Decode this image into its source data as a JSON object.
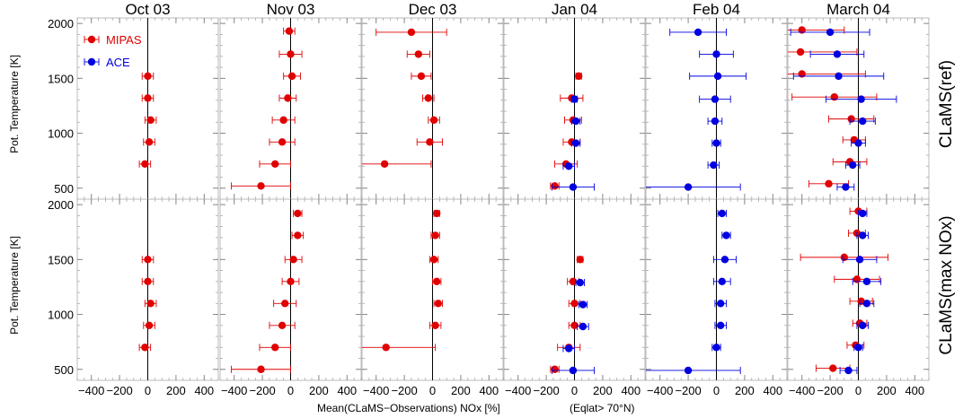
{
  "chart_data": {
    "type": "scatter",
    "title": "",
    "xlabel": "Mean(CLaMS−Observations) NOx [%]",
    "xlabel_note": "(Eqlat> 70°N)",
    "ylabel": "Pot. Temperature [K]",
    "columns": [
      "Oct 03",
      "Nov 03",
      "Dec 03",
      "Jan 04",
      "Feb 04",
      "March 04"
    ],
    "rows": [
      "CLaMS(ref)",
      "CLaMS(max NOx)"
    ],
    "xlim": [
      -500,
      500
    ],
    "ylim": [
      400,
      2050
    ],
    "xticks": [
      -400,
      -200,
      0,
      200,
      400
    ],
    "xtick_labels": [
      "−400",
      "−200",
      "0",
      "200",
      "400"
    ],
    "yticks": [
      500,
      1000,
      1500,
      2000
    ],
    "ytick_labels": [
      "500",
      "1000",
      "1500",
      "2000"
    ],
    "legend": {
      "position": "top-left",
      "entries": [
        {
          "name": "MIPAS",
          "color": "#e00000"
        },
        {
          "name": "ACE",
          "color": "#0000e0"
        }
      ]
    },
    "colors": {
      "MIPAS": "#e00000",
      "ACE": "#0000e0"
    },
    "panels": [
      {
        "row": 0,
        "col": 0,
        "series": [
          {
            "name": "MIPAS",
            "points": [
              {
                "x": 0,
                "y": 1520,
                "xerr": 40
              },
              {
                "x": 0,
                "y": 1320,
                "xerr": 40
              },
              {
                "x": 20,
                "y": 1120,
                "xerr": 40
              },
              {
                "x": 10,
                "y": 920,
                "xerr": 40
              },
              {
                "x": -20,
                "y": 720,
                "xerr": 40
              }
            ]
          }
        ]
      },
      {
        "row": 0,
        "col": 1,
        "series": [
          {
            "name": "MIPAS",
            "points": [
              {
                "x": -10,
                "y": 1930,
                "xerr": 40
              },
              {
                "x": 0,
                "y": 1720,
                "xerr": 80
              },
              {
                "x": 10,
                "y": 1520,
                "xerr": 60
              },
              {
                "x": -20,
                "y": 1320,
                "xerr": 60
              },
              {
                "x": -50,
                "y": 1120,
                "xerr": 80
              },
              {
                "x": -60,
                "y": 920,
                "xerr": 90
              },
              {
                "x": -110,
                "y": 720,
                "xerr": 110
              },
              {
                "x": -210,
                "y": 520,
                "xerr": 210
              }
            ]
          }
        ]
      },
      {
        "row": 0,
        "col": 2,
        "series": [
          {
            "name": "MIPAS",
            "points": [
              {
                "x": -150,
                "y": 1920,
                "xerr": 250
              },
              {
                "x": -100,
                "y": 1720,
                "xerr": 80
              },
              {
                "x": -80,
                "y": 1520,
                "xerr": 70
              },
              {
                "x": -30,
                "y": 1320,
                "xerr": 40
              },
              {
                "x": 10,
                "y": 1120,
                "xerr": 40
              },
              {
                "x": -20,
                "y": 920,
                "xerr": 90
              },
              {
                "x": -340,
                "y": 720,
                "xerr": 330
              }
            ]
          }
        ]
      },
      {
        "row": 0,
        "col": 3,
        "series": [
          {
            "name": "MIPAS",
            "points": [
              {
                "x": 30,
                "y": 1520,
                "xerr": 20
              },
              {
                "x": -20,
                "y": 1320,
                "xerr": 80
              },
              {
                "x": -10,
                "y": 1120,
                "xerr": 60
              },
              {
                "x": -20,
                "y": 920,
                "xerr": 60
              },
              {
                "x": -60,
                "y": 720,
                "xerr": 80
              },
              {
                "x": -140,
                "y": 520,
                "xerr": 30
              }
            ]
          },
          {
            "name": "ACE",
            "points": [
              {
                "x": 0,
                "y": 1310,
                "xerr": 20
              },
              {
                "x": 10,
                "y": 1110,
                "xerr": 30
              },
              {
                "x": 10,
                "y": 910,
                "xerr": 30
              },
              {
                "x": -40,
                "y": 700,
                "xerr": 40
              },
              {
                "x": -10,
                "y": 510,
                "xerr": 150
              }
            ]
          }
        ]
      },
      {
        "row": 0,
        "col": 4,
        "series": [
          {
            "name": "ACE",
            "points": [
              {
                "x": -130,
                "y": 1920,
                "xerr": 200
              },
              {
                "x": 0,
                "y": 1720,
                "xerr": 120
              },
              {
                "x": 10,
                "y": 1520,
                "xerr": 200
              },
              {
                "x": -10,
                "y": 1310,
                "xerr": 110
              },
              {
                "x": -10,
                "y": 1110,
                "xerr": 50
              },
              {
                "x": 0,
                "y": 910,
                "xerr": 30
              },
              {
                "x": -20,
                "y": 710,
                "xerr": 40
              },
              {
                "x": -200,
                "y": 510,
                "xerr": 370
              }
            ]
          }
        ]
      },
      {
        "row": 0,
        "col": 5,
        "series": [
          {
            "name": "MIPAS",
            "points": [
              {
                "x": -400,
                "y": 1940,
                "xerr": 300
              },
              {
                "x": -410,
                "y": 1740,
                "xerr": 400
              },
              {
                "x": -400,
                "y": 1540,
                "xerr": 450
              },
              {
                "x": -170,
                "y": 1330,
                "xerr": 300
              },
              {
                "x": -50,
                "y": 1130,
                "xerr": 160
              },
              {
                "x": -30,
                "y": 940,
                "xerr": 80
              },
              {
                "x": -60,
                "y": 740,
                "xerr": 120
              },
              {
                "x": -210,
                "y": 540,
                "xerr": 140
              }
            ]
          },
          {
            "name": "ACE",
            "points": [
              {
                "x": -200,
                "y": 1920,
                "xerr": 280
              },
              {
                "x": -150,
                "y": 1720,
                "xerr": 190
              },
              {
                "x": -140,
                "y": 1520,
                "xerr": 320
              },
              {
                "x": 20,
                "y": 1310,
                "xerr": 250
              },
              {
                "x": 30,
                "y": 1110,
                "xerr": 90
              },
              {
                "x": 0,
                "y": 910,
                "xerr": 50
              },
              {
                "x": -40,
                "y": 710,
                "xerr": 50
              },
              {
                "x": -90,
                "y": 510,
                "xerr": 60
              }
            ]
          }
        ]
      },
      {
        "row": 1,
        "col": 0,
        "series": [
          {
            "name": "MIPAS",
            "points": [
              {
                "x": 0,
                "y": 1500,
                "xerr": 40
              },
              {
                "x": 0,
                "y": 1300,
                "xerr": 40
              },
              {
                "x": 20,
                "y": 1100,
                "xerr": 40
              },
              {
                "x": 10,
                "y": 900,
                "xerr": 40
              },
              {
                "x": -20,
                "y": 700,
                "xerr": 40
              }
            ]
          }
        ]
      },
      {
        "row": 1,
        "col": 1,
        "series": [
          {
            "name": "MIPAS",
            "points": [
              {
                "x": 50,
                "y": 1920,
                "xerr": 30
              },
              {
                "x": 50,
                "y": 1720,
                "xerr": 40
              },
              {
                "x": 20,
                "y": 1500,
                "xerr": 60
              },
              {
                "x": 0,
                "y": 1300,
                "xerr": 60
              },
              {
                "x": -40,
                "y": 1100,
                "xerr": 80
              },
              {
                "x": -60,
                "y": 900,
                "xerr": 90
              },
              {
                "x": -110,
                "y": 700,
                "xerr": 110
              },
              {
                "x": -210,
                "y": 500,
                "xerr": 210
              }
            ]
          }
        ]
      },
      {
        "row": 1,
        "col": 2,
        "series": [
          {
            "name": "MIPAS",
            "points": [
              {
                "x": 30,
                "y": 1920,
                "xerr": 20
              },
              {
                "x": 20,
                "y": 1720,
                "xerr": 30
              },
              {
                "x": 10,
                "y": 1500,
                "xerr": 30
              },
              {
                "x": 30,
                "y": 1300,
                "xerr": 30
              },
              {
                "x": 40,
                "y": 1100,
                "xerr": 30
              },
              {
                "x": 20,
                "y": 900,
                "xerr": 40
              },
              {
                "x": -330,
                "y": 700,
                "xerr": 350
              }
            ]
          }
        ]
      },
      {
        "row": 1,
        "col": 3,
        "series": [
          {
            "name": "MIPAS",
            "points": [
              {
                "x": 40,
                "y": 1500,
                "xerr": 20
              },
              {
                "x": -10,
                "y": 1300,
                "xerr": 40
              },
              {
                "x": 0,
                "y": 1100,
                "xerr": 40
              },
              {
                "x": 0,
                "y": 900,
                "xerr": 40
              },
              {
                "x": -40,
                "y": 700,
                "xerr": 80
              },
              {
                "x": -140,
                "y": 500,
                "xerr": 30
              }
            ]
          },
          {
            "name": "ACE",
            "points": [
              {
                "x": 40,
                "y": 1290,
                "xerr": 30
              },
              {
                "x": 60,
                "y": 1090,
                "xerr": 30
              },
              {
                "x": 60,
                "y": 890,
                "xerr": 40
              },
              {
                "x": -40,
                "y": 690,
                "xerr": 40
              },
              {
                "x": -10,
                "y": 490,
                "xerr": 150
              }
            ]
          }
        ]
      },
      {
        "row": 1,
        "col": 4,
        "series": [
          {
            "name": "ACE",
            "points": [
              {
                "x": 40,
                "y": 1920,
                "xerr": 30
              },
              {
                "x": 70,
                "y": 1720,
                "xerr": 30
              },
              {
                "x": 60,
                "y": 1500,
                "xerr": 80
              },
              {
                "x": 40,
                "y": 1300,
                "xerr": 60
              },
              {
                "x": 30,
                "y": 1100,
                "xerr": 40
              },
              {
                "x": 30,
                "y": 900,
                "xerr": 40
              },
              {
                "x": 0,
                "y": 700,
                "xerr": 30
              },
              {
                "x": -200,
                "y": 490,
                "xerr": 370
              }
            ]
          }
        ]
      },
      {
        "row": 1,
        "col": 5,
        "series": [
          {
            "name": "MIPAS",
            "points": [
              {
                "x": 0,
                "y": 1940,
                "xerr": 60
              },
              {
                "x": -10,
                "y": 1740,
                "xerr": 60
              },
              {
                "x": -100,
                "y": 1520,
                "xerr": 310
              },
              {
                "x": -10,
                "y": 1320,
                "xerr": 160
              },
              {
                "x": 20,
                "y": 1120,
                "xerr": 80
              },
              {
                "x": 10,
                "y": 920,
                "xerr": 50
              },
              {
                "x": -20,
                "y": 720,
                "xerr": 60
              },
              {
                "x": -180,
                "y": 510,
                "xerr": 120
              }
            ]
          },
          {
            "name": "ACE",
            "points": [
              {
                "x": 30,
                "y": 1920,
                "xerr": 30
              },
              {
                "x": 30,
                "y": 1720,
                "xerr": 40
              },
              {
                "x": 10,
                "y": 1500,
                "xerr": 120
              },
              {
                "x": 60,
                "y": 1300,
                "xerr": 100
              },
              {
                "x": 60,
                "y": 1100,
                "xerr": 50
              },
              {
                "x": 30,
                "y": 900,
                "xerr": 40
              },
              {
                "x": 0,
                "y": 700,
                "xerr": 30
              },
              {
                "x": -70,
                "y": 490,
                "xerr": 60
              }
            ]
          }
        ]
      }
    ]
  }
}
